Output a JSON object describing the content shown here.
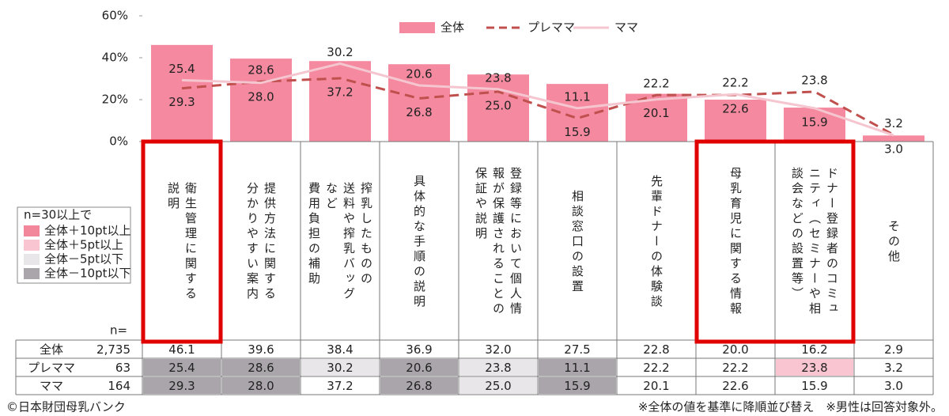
{
  "chart_data": {
    "type": "bar",
    "categories": [
      "衛生管理に関する\n説明",
      "提供方法に関する\n分かりやすい案内",
      "搾乳したものの\n送料や搾乳バッグ\nなど\n費用負担の補助",
      "具体的な手順の説明",
      "登録等において個人情\n報が保護されることの\n保証や説明",
      "相談窓口の設置",
      "先輩ドナーの体験談",
      "母乳育児に関する情報",
      "ドナー登録者のコミュ\nニティ（セミナーや相\n談会などの設置等）",
      "その他"
    ],
    "series": [
      {
        "name": "全体",
        "color": "#f4899f",
        "n": {
          "value": 2735,
          "label": "2,735"
        },
        "values": [
          46.1,
          39.6,
          38.4,
          36.9,
          32.0,
          27.5,
          22.8,
          20.0,
          16.2,
          2.9
        ],
        "value_labels": [
          "46.1",
          "39.6",
          "38.4",
          "36.9",
          "32.0",
          "27.5",
          "22.8",
          "20.0",
          "16.2",
          "2.9"
        ]
      },
      {
        "name": "プレママ",
        "color": "#c0504d",
        "type": "line",
        "dashed": true,
        "n": 63,
        "values": [
          25.4,
          28.6,
          30.2,
          20.6,
          23.8,
          11.1,
          22.2,
          22.2,
          23.8,
          3.2
        ],
        "value_labels": [
          "25.4",
          "28.6",
          "30.2",
          "20.6",
          "23.8",
          "11.1",
          "22.2",
          "22.2",
          "23.8",
          "3.2"
        ],
        "cell_colors": [
          "#a9a5aa",
          "#a9a5aa",
          "#e9e6ea",
          "#a9a5aa",
          "#e9e6ea",
          "#a9a5aa",
          null,
          null,
          "#f9c5d1",
          null
        ]
      },
      {
        "name": "ママ",
        "color": "#f5c6d0",
        "type": "line",
        "n": 164,
        "values": [
          29.3,
          28.0,
          37.2,
          26.8,
          25.0,
          15.9,
          20.1,
          22.6,
          15.9,
          3.0
        ],
        "value_labels": [
          "29.3",
          "28.0",
          "37.2",
          "26.8",
          "25.0",
          "15.9",
          "20.1",
          "22.6",
          "15.9",
          "3.0"
        ],
        "cell_colors": [
          "#a9a5aa",
          "#a9a5aa",
          null,
          "#a9a5aa",
          "#e9e6ea",
          "#a9a5aa",
          null,
          null,
          null,
          null
        ]
      }
    ],
    "ylim": [
      0,
      60
    ],
    "yticks": [
      {
        "value": 0,
        "label": "0%"
      },
      {
        "value": 20,
        "label": "20%"
      },
      {
        "value": 40,
        "label": "40%"
      },
      {
        "value": 60,
        "label": "60%"
      }
    ],
    "n_header": "n=",
    "legend_box": {
      "title": "n=30以上で",
      "items": [
        {
          "label": "全体＋10pt以上",
          "color": "#f2879c"
        },
        {
          "label": "全体＋5pt以上",
          "color": "#f9c5d1"
        },
        {
          "label": "全体－5pt以下",
          "color": "#e9e6ea"
        },
        {
          "label": "全体－10pt以下",
          "color": "#a9a5aa"
        }
      ]
    },
    "source": "©日本財団母乳バンク",
    "note": "※全体の値を基準に降順並び替え　※男性は回答対象外。"
  }
}
